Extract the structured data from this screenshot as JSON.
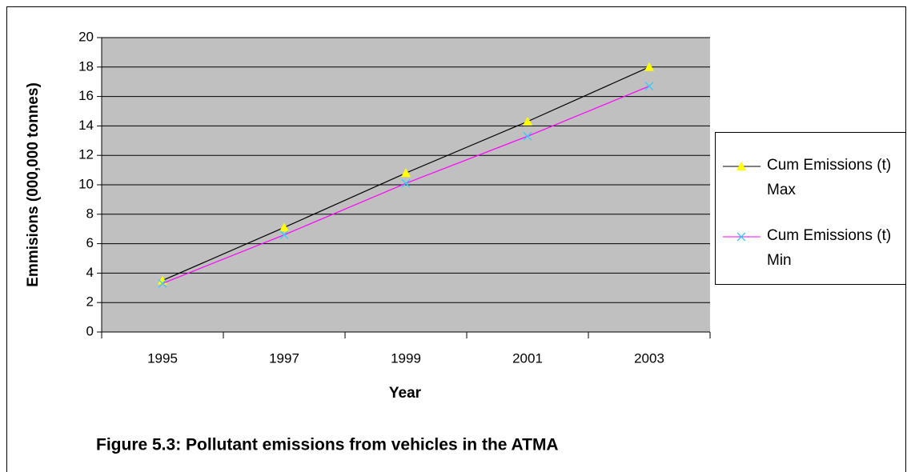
{
  "chart_data": {
    "type": "line",
    "categories": [
      "1995",
      "1997",
      "1999",
      "2001",
      "2003"
    ],
    "series": [
      {
        "name": "Cum Emissions (t) Max",
        "color": "#000000",
        "marker": "triangle",
        "marker_color": "#ffff00",
        "values": [
          3.5,
          7.1,
          10.8,
          14.3,
          18.0
        ]
      },
      {
        "name": "Cum Emissions (t) Min",
        "color": "#ff00ff",
        "marker": "x",
        "marker_color": "#33ccff",
        "values": [
          3.3,
          6.6,
          10.1,
          13.3,
          16.7
        ]
      }
    ],
    "ylim": [
      0,
      20
    ],
    "yticks": [
      0,
      2,
      4,
      6,
      8,
      10,
      12,
      14,
      16,
      18,
      20
    ],
    "grid": true,
    "plot_background": "#c0c0c0",
    "xlabel": "Year",
    "ylabel": "Emmisions (000,000 tonnes)",
    "legend": "right",
    "caption": "Figure 5.3: Pollutant emissions from vehicles in the ATMA"
  }
}
